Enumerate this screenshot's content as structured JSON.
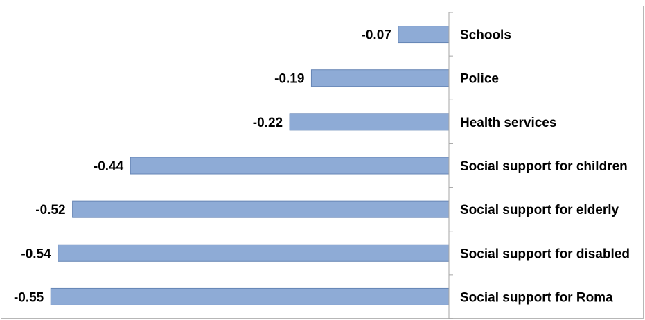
{
  "chart_data": {
    "type": "bar",
    "orientation": "horizontal",
    "categories": [
      "Schools",
      "Police",
      "Health services",
      "Social support for children",
      "Social support for elderly",
      "Social support for disabled",
      "Social support for Roma"
    ],
    "values": [
      -0.07,
      -0.19,
      -0.22,
      -0.44,
      -0.52,
      -0.54,
      -0.55
    ],
    "value_labels": [
      "-0.07",
      "-0.19",
      "-0.22",
      "-0.44",
      "-0.52",
      "-0.54",
      "-0.55"
    ],
    "title": "",
    "xlabel": "",
    "ylabel": "",
    "xlim": [
      -0.58,
      0
    ],
    "grid": false,
    "legend": "none",
    "bar_fill": "#8eabd6",
    "bar_stroke": "#6685b5",
    "axis_color": "#a6a6a6",
    "frame_color": "#b7b7b7"
  }
}
